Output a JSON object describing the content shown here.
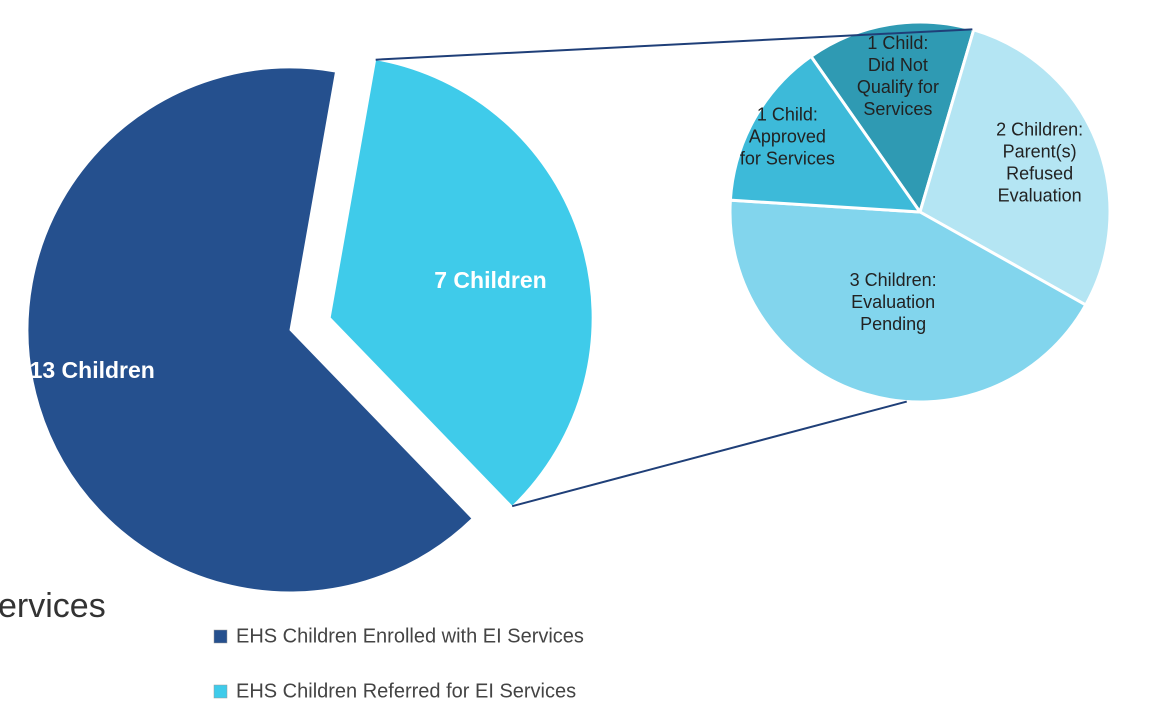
{
  "chart_data": {
    "type": "pie",
    "fragment": "ervices",
    "categories": [
      "EHS Children Enrolled with EI Services",
      "EHS Children Referred for EI Services"
    ],
    "values": [
      13,
      7
    ],
    "value_labels": [
      "13 Children",
      "7 Children"
    ],
    "colors": [
      "#25508e",
      "#3fcbea"
    ],
    "legend": "bottom",
    "sub_pie": {
      "values": [
        1,
        2,
        3,
        1
      ],
      "value_labels": [
        [
          "1 Child:",
          "Did Not",
          "Qualify for",
          "Services"
        ],
        [
          "2 Children:",
          "Parent(s)",
          "Refused",
          "Evaluation"
        ],
        [
          "3 Children:",
          "Evaluation",
          "Pending"
        ],
        [
          "1 Child:",
          "Approved",
          "for Services"
        ]
      ],
      "colors": [
        "#2f9ab3",
        "#b4e5f3",
        "#82d5ed",
        "#3dbad9"
      ]
    }
  }
}
